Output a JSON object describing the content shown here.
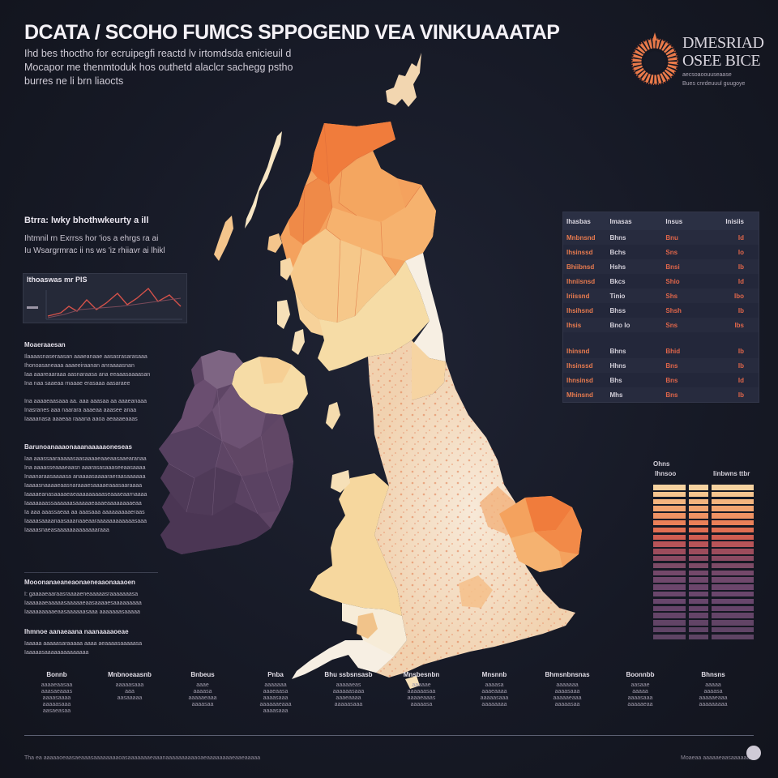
{
  "header": {
    "title": "DCATA / SCOHO FUMCS SPPOGEND VEA VINKUAAATAP",
    "subtitle_lines": [
      "Ihd bes thoctho for ecruipegfi reactd lv irtomdsda enicieuil d",
      "Mocapor me thenmtoduk hos outhetd alaclcr sachegg pstho",
      "burres ne li brn liaocts"
    ]
  },
  "brand": {
    "line1": "DMESRIAD",
    "line2": "OSEE BICE",
    "line3": "aecsoaoouuseaase",
    "line4": "Bues cnrdeuuul guugoye"
  },
  "left_panel": {
    "heading": "Btrra: lwky bhothwkeurty a ill",
    "text_lines": [
      "Ihtmnil rn Exrrss hor 'ios a ehrgs ra ai",
      "Iu Wsargrmrac ii ns ws 'iz rhiiavr ai lhikl"
    ],
    "spark_label": "Ithoaswas mr PIS"
  },
  "text_blocks": [
    {
      "heading": "Moaeraaesan",
      "lines": [
        "Ilaaaasnaseraasan aaaeanaae aasasrasarasaaa",
        "Ihonoasaneaaa aaaeeiraanan anraaaasnan",
        "Iaa aaareaaraaa aasnaraasa ana eeaaasaaaasan",
        "Ina naa saaeaa rnaaae erasaaa aasaraee",
        "",
        "Ina aaaaeaasaaa aa. aaa aaasaa aa aaaeanaaa",
        "Inasranes aaa naarara aaaeaa aaasee anaa",
        "Iaaaanasa aaaeaa raaana aaoa aeaaaeaaas"
      ]
    },
    {
      "heading": "Barunoanaaaonaaanaaaaaoneseas",
      "lines": [
        "Iaa aaassaaraaaaasaasaaaaeaaeaasaaearanaa",
        "Ina aaaasseaaaeaasn aaarasasaaaseeaasaaaa",
        "Inaanaraasaaaasa anaaaasaaaaraeraasaaaaaa",
        "Iaaaasnaaaaeaasnaraaaesaaaaeaaasaaraaaa",
        "Iaaaaeanasaaaaeaeaaaaaaaaaseaaaeaarnaaaa",
        "Iaaaaaaassaaaaaasaaaaaeaaaeaaaaaaaaeaa",
        "Ia aaa aaassaeaa aa aaasaaa aaaaaaaaaeraas",
        "Iaaaasaaaanaasaaanaaeaaraaaaaaaaaaaasaaa",
        "Iaaaasnaeasaaaaaaaaaaaaaraaa"
      ]
    },
    {
      "heading": "Mooonanaeaneaonaeneaaonaaaoen",
      "lines": [
        "I: gaaaaeaaraasraaaaeneaaaaasraaaaaaasa",
        "Iaaaaaaeaaaaasaaaaaeaasaaaaesaaaaaaaaa",
        "Iaaaaaaaaaeaasaaaaaasaaa aaaaaaasaaaaa"
      ]
    },
    {
      "heading": "Ihmnoe aanaeaana naanaaaaoeae",
      "lines": [
        "Iaaaaa aaaaasaraaaaa aaaa aeaaaasaaaaasa",
        "Iaaaaasaaaaaaaaaaaaaa"
      ]
    }
  ],
  "data_table": {
    "headers": [
      "Ihasbas",
      "Imasas",
      "Insus",
      "Inisiis"
    ],
    "rows": [
      [
        "Mnbnsnd",
        "Bhns",
        "Bnu",
        "Id"
      ],
      [
        "Ihsinssd",
        "Bchs",
        "Sns",
        "Io"
      ],
      [
        "Bhiibnsd",
        "Hshs",
        "Bnsi",
        "Ib"
      ],
      [
        "Ihniisnsd",
        "Bkcs",
        "Shio",
        "Id"
      ],
      [
        "Iriissnd",
        "Tinio",
        "Shs",
        "Ibo"
      ],
      [
        "Ihsihsnd",
        "Bhss",
        "Shsh",
        "Ib"
      ],
      [
        "Ihsis",
        "Bno lo",
        "Sns",
        "Ibs"
      ],
      [
        "Ihinsnd",
        "Bhns",
        "Bhid",
        "Ib"
      ],
      [
        "Ihsinssd",
        "Hhns",
        "Bns",
        "Ib"
      ],
      [
        "Ihnsinsd",
        "Bhs",
        "Bns",
        "Id"
      ],
      [
        "Mhinsnd",
        "Mhs",
        "Bns",
        "Ib"
      ]
    ]
  },
  "bars": {
    "label_top": "Ohns",
    "label_a": "Ihnsoo",
    "label_b": "Iinbwns ttbr"
  },
  "bottom_stats": [
    {
      "label": "Bonnb",
      "lines": [
        "aaaaeaasaa",
        "aaasaeaaas",
        "aaaasaaaa",
        "aaaaasaaa",
        "aasaeasaa"
      ]
    },
    {
      "label": "Mnbnoeaasnb",
      "lines": [
        "aaaaasaaa",
        "aaa",
        "aasaaaaa"
      ]
    },
    {
      "label": "Bnbeus",
      "lines": [
        "aaae",
        "aaaasa",
        "aaaaaeaaa",
        "aaaasaa"
      ]
    },
    {
      "label": "Pnba",
      "lines": [
        "aaaaaaa",
        "aaaeaasa",
        "aaaasaaa",
        "aaaaaaeaaa",
        "aaaasaaa"
      ]
    },
    {
      "label": "Bhu ssbsnsasb",
      "lines": [
        "aaaaaeas",
        "aaaaaasaaa",
        "aaaeaaaa",
        "aaaaasaaa"
      ]
    },
    {
      "label": "Mnsbesnbn",
      "lines": [
        "aaaaae",
        "aaaaaasaa",
        "aaaaeaaas",
        "aaaaasa"
      ]
    },
    {
      "label": "Mnsnnb",
      "lines": [
        "aaaasa",
        "aaaeaaaa",
        "aaaaasaaa",
        "aaaaaaaa"
      ]
    },
    {
      "label": "Bhmsnbnsnas",
      "lines": [
        "aaaaaaa",
        "aaaasaaa",
        "aaaaaeaaa",
        "aaaaasaa"
      ]
    },
    {
      "label": "Boonnbb",
      "lines": [
        "aasaae",
        "aaaaa",
        "aaaasaaa",
        "aaaaaeaa"
      ]
    },
    {
      "label": "Bhnsns",
      "lines": [
        "aaaaa",
        "aaaasa",
        "aaaaaeaaa",
        "aaaaaaaaa"
      ]
    }
  ],
  "footer": {
    "left": "Tha ea aaaaaoeaasaeaaasaaaaaaaaoasaaaaaaaeaaanaaaaaaaaaaoaeaaaaaaaaeaaeaaaaa",
    "right": "Moaeaa aaaaaeaasaaaaaa"
  },
  "colors": {
    "background": "#171a26",
    "orange": "#f07c3c",
    "peach": "#f4a860",
    "cream": "#f6dfb0",
    "ivory": "#f7efe3",
    "purple": "#5e4565",
    "red_accent": "#e0664a"
  }
}
